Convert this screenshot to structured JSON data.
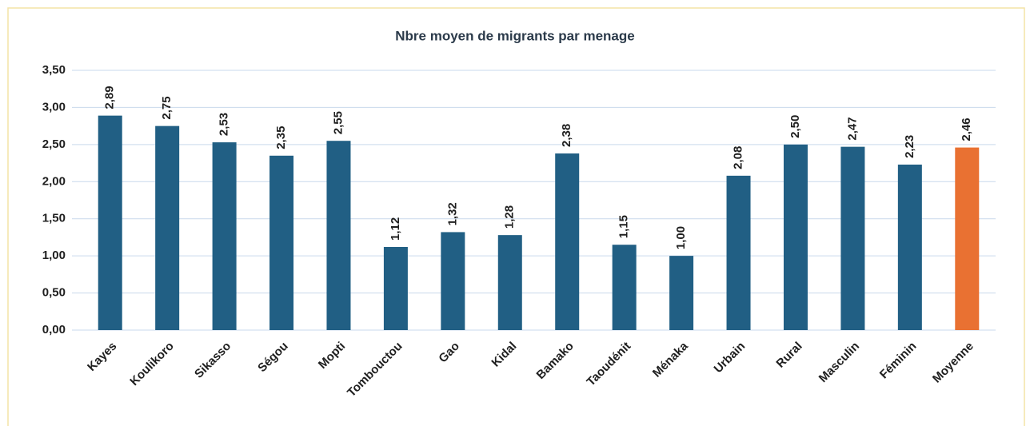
{
  "chart_data": {
    "type": "bar",
    "title": "Nbre moyen de migrants par menage",
    "categories": [
      "Kayes",
      "Koulikoro",
      "Sikasso",
      "Ségou",
      "Mopti",
      "Tombouctou",
      "Gao",
      "Kidal",
      "Bamako",
      "Taoudénit",
      "Ménaka",
      "Urbain",
      "Rural",
      "Masculin",
      "Féminin",
      "Moyenne"
    ],
    "values": [
      2.89,
      2.75,
      2.53,
      2.35,
      2.55,
      1.12,
      1.32,
      1.28,
      2.38,
      1.15,
      1.0,
      2.08,
      2.5,
      2.47,
      2.23,
      2.46
    ],
    "value_labels": [
      "2,89",
      "2,75",
      "2,53",
      "2,35",
      "2,55",
      "1,12",
      "1,32",
      "1,28",
      "2,38",
      "1,15",
      "1,00",
      "2,08",
      "2,50",
      "2,47",
      "2,23",
      "2,46"
    ],
    "colors": [
      "#215f84",
      "#215f84",
      "#215f84",
      "#215f84",
      "#215f84",
      "#215f84",
      "#215f84",
      "#215f84",
      "#215f84",
      "#215f84",
      "#215f84",
      "#215f84",
      "#215f84",
      "#215f84",
      "#215f84",
      "#e97132"
    ],
    "ylim": [
      0,
      3.5
    ],
    "yticks": [
      {
        "value": 0,
        "label": "0,00"
      },
      {
        "value": 0.5,
        "label": "0,50"
      },
      {
        "value": 1,
        "label": "1,00"
      },
      {
        "value": 1.5,
        "label": "1,50"
      },
      {
        "value": 2,
        "label": "2,00"
      },
      {
        "value": 2.5,
        "label": "2,50"
      },
      {
        "value": 3,
        "label": "3,00"
      },
      {
        "value": 3.5,
        "label": "3,50"
      }
    ],
    "grid": true
  }
}
